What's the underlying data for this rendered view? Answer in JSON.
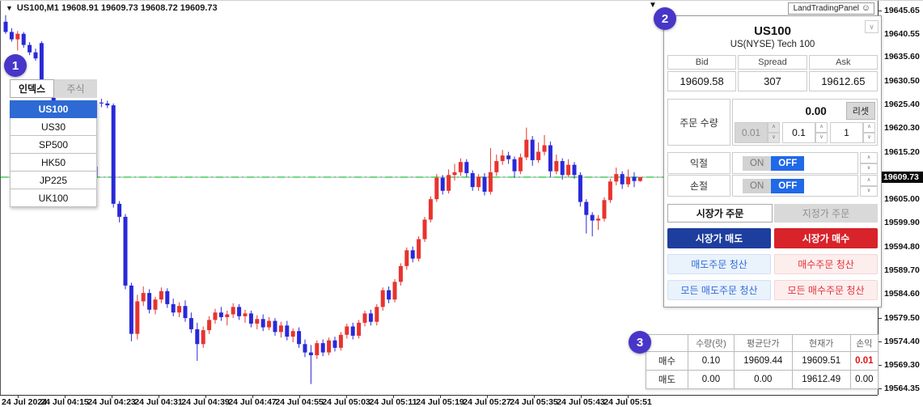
{
  "chart": {
    "title_marker": "▼",
    "ohlc_line": "US100,M1  19608.91 19609.73 19608.72 19609.73",
    "watermark": "LandTradingPanel",
    "current_price": "19609.73",
    "price_axis_labels": [
      "19645.65",
      "19640.55",
      "19635.60",
      "19630.50",
      "19625.40",
      "19620.30",
      "19615.20",
      "19610.10",
      "19605.00",
      "19599.90",
      "19594.80",
      "19589.70",
      "19584.60",
      "19579.50",
      "19574.40",
      "19569.30",
      "19564.35"
    ],
    "time_axis_labels": [
      "24 Jul 2024",
      "24 Jul 04:15",
      "24 Jul 04:23",
      "24 Jul 04:31",
      "24 Jul 04:39",
      "24 Jul 04:47",
      "24 Jul 04:55",
      "24 Jul 05:03",
      "24 Jul 05:11",
      "24 Jul 05:19",
      "24 Jul 05:27",
      "24 Jul 05:35",
      "24 Jul 05:43",
      "24 Jul 05:51"
    ]
  },
  "chart_data": {
    "type": "candlestick",
    "symbol": "US100",
    "timeframe": "M1",
    "title": "US100,M1",
    "last_bar_ohlc": [
      19608.91,
      19609.73,
      19608.72,
      19609.73
    ],
    "current_price": 19609.73,
    "ylim": [
      19562.87,
      19647.7
    ],
    "x_labels": [
      "24 Jul 2024",
      "24 Jul 04:15",
      "24 Jul 04:23",
      "24 Jul 04:31",
      "24 Jul 04:39",
      "24 Jul 04:47",
      "24 Jul 04:55",
      "24 Jul 05:03",
      "24 Jul 05:11",
      "24 Jul 05:19",
      "24 Jul 05:27",
      "24 Jul 05:35",
      "24 Jul 05:43",
      "24 Jul 05:51"
    ],
    "grid": false,
    "up_color": "#e8332e",
    "down_color": "#2929d8",
    "price_line_color": "#33cc44",
    "candles": [
      [
        19643.2,
        19644.6,
        19640.6,
        19641.0
      ],
      [
        19641.0,
        19641.8,
        19638.9,
        19639.4
      ],
      [
        19639.4,
        19641.2,
        19637.0,
        19640.6
      ],
      [
        19640.6,
        19641.0,
        19637.6,
        19638.2
      ],
      [
        19638.2,
        19638.8,
        19636.0,
        19636.6
      ],
      [
        19636.6,
        19637.4,
        19634.8,
        19635.3
      ],
      [
        19638.6,
        19639.0,
        19629.4,
        19629.8
      ],
      [
        19629.8,
        19630.4,
        19626.8,
        19627.4
      ],
      [
        19627.4,
        19628.0,
        19624.6,
        19625.2
      ],
      [
        19625.2,
        19626.0,
        19622.4,
        19623.0
      ],
      [
        19623.0,
        19623.8,
        19620.2,
        19620.8
      ],
      [
        19620.8,
        19621.4,
        19618.0,
        19618.6
      ],
      [
        19618.6,
        19619.4,
        19615.8,
        19616.4
      ],
      [
        19616.4,
        19617.0,
        19613.6,
        19614.2
      ],
      [
        19614.2,
        19615.0,
        19611.4,
        19612.0
      ],
      [
        19612.0,
        19612.8,
        19609.2,
        19609.8
      ],
      [
        19625.8,
        19626.6,
        19624.8,
        19625.6
      ],
      [
        19625.6,
        19626.2,
        19624.6,
        19625.2
      ],
      [
        19625.2,
        19625.6,
        19603.2,
        19604.0
      ],
      [
        19604.0,
        19604.6,
        19600.0,
        19601.2
      ],
      [
        19601.2,
        19601.8,
        19585.6,
        19586.4
      ],
      [
        19586.4,
        19587.0,
        19574.4,
        19576.0
      ],
      [
        19576.0,
        19584.4,
        19574.8,
        19583.0
      ],
      [
        19583.0,
        19586.2,
        19582.0,
        19584.8
      ],
      [
        19584.8,
        19585.6,
        19580.4,
        19581.2
      ],
      [
        19581.2,
        19584.0,
        19580.2,
        19583.4
      ],
      [
        19583.4,
        19586.0,
        19582.6,
        19585.2
      ],
      [
        19585.2,
        19585.8,
        19581.6,
        19582.4
      ],
      [
        19582.4,
        19583.6,
        19579.8,
        19580.6
      ],
      [
        19580.6,
        19582.8,
        19579.6,
        19582.0
      ],
      [
        19582.0,
        19583.2,
        19578.6,
        19579.4
      ],
      [
        19579.4,
        19580.6,
        19576.2,
        19577.0
      ],
      [
        19577.0,
        19578.4,
        19570.2,
        19573.8
      ],
      [
        19573.8,
        19577.6,
        19573.0,
        19576.8
      ],
      [
        19576.8,
        19579.8,
        19576.0,
        19579.0
      ],
      [
        19579.0,
        19581.4,
        19578.2,
        19580.6
      ],
      [
        19580.6,
        19581.8,
        19578.8,
        19579.6
      ],
      [
        19579.6,
        19581.0,
        19577.8,
        19580.2
      ],
      [
        19580.2,
        19582.6,
        19579.4,
        19581.8
      ],
      [
        19581.8,
        19582.4,
        19579.0,
        19579.8
      ],
      [
        19579.8,
        19581.2,
        19578.4,
        19580.4
      ],
      [
        19580.4,
        19581.0,
        19577.4,
        19578.2
      ],
      [
        19578.2,
        19580.0,
        19577.0,
        19579.2
      ],
      [
        19579.2,
        19580.2,
        19576.6,
        19577.4
      ],
      [
        19577.4,
        19579.6,
        19576.8,
        19578.8
      ],
      [
        19578.8,
        19579.4,
        19575.6,
        19576.4
      ],
      [
        19576.4,
        19578.6,
        19575.2,
        19577.8
      ],
      [
        19577.8,
        19578.8,
        19574.6,
        19575.4
      ],
      [
        19575.4,
        19577.2,
        19574.2,
        19576.6
      ],
      [
        19576.6,
        19577.4,
        19573.0,
        19573.8
      ],
      [
        19573.8,
        19574.8,
        19571.0,
        19572.0
      ],
      [
        19572.0,
        19573.6,
        19565.2,
        19571.4
      ],
      [
        19571.4,
        19574.6,
        19570.6,
        19574.0
      ],
      [
        19574.0,
        19574.8,
        19571.2,
        19572.0
      ],
      [
        19572.0,
        19575.2,
        19571.4,
        19574.6
      ],
      [
        19574.6,
        19575.4,
        19572.2,
        19573.0
      ],
      [
        19573.0,
        19576.4,
        19572.4,
        19575.8
      ],
      [
        19575.8,
        19578.2,
        19575.0,
        19577.6
      ],
      [
        19577.6,
        19578.4,
        19574.8,
        19575.6
      ],
      [
        19575.6,
        19579.0,
        19575.0,
        19578.4
      ],
      [
        19578.4,
        19581.0,
        19577.6,
        19580.4
      ],
      [
        19580.4,
        19581.2,
        19577.8,
        19578.6
      ],
      [
        19578.6,
        19582.4,
        19577.8,
        19581.8
      ],
      [
        19581.8,
        19586.0,
        19581.0,
        19585.4
      ],
      [
        19585.4,
        19586.2,
        19582.6,
        19583.4
      ],
      [
        19583.4,
        19587.8,
        19582.8,
        19587.2
      ],
      [
        19587.2,
        19591.2,
        19586.4,
        19590.6
      ],
      [
        19590.6,
        19594.6,
        19589.8,
        19594.0
      ],
      [
        19594.0,
        19594.8,
        19591.4,
        19592.2
      ],
      [
        19592.2,
        19597.0,
        19591.6,
        19596.4
      ],
      [
        19596.4,
        19601.2,
        19595.8,
        19600.6
      ],
      [
        19600.6,
        19605.6,
        19600.0,
        19605.0
      ],
      [
        19605.0,
        19610.4,
        19604.4,
        19609.6
      ],
      [
        19609.6,
        19610.2,
        19606.0,
        19606.8
      ],
      [
        19606.8,
        19611.4,
        19606.2,
        19610.2
      ],
      [
        19610.2,
        19612.6,
        19609.0,
        19610.8
      ],
      [
        19610.8,
        19613.8,
        19610.0,
        19613.0
      ],
      [
        19613.0,
        19613.6,
        19609.8,
        19610.6
      ],
      [
        19610.6,
        19611.2,
        19606.8,
        19607.6
      ],
      [
        19607.6,
        19610.4,
        19606.8,
        19609.8
      ],
      [
        19609.8,
        19610.6,
        19605.8,
        19606.6
      ],
      [
        19606.6,
        19616.0,
        19606.0,
        19610.8
      ],
      [
        19610.8,
        19614.6,
        19610.0,
        19613.2
      ],
      [
        19613.2,
        19615.6,
        19612.4,
        19614.4
      ],
      [
        19614.4,
        19615.2,
        19612.6,
        19613.6
      ],
      [
        19613.6,
        19614.2,
        19609.6,
        19611.0
      ],
      [
        19611.0,
        19614.8,
        19610.4,
        19614.0
      ],
      [
        19614.0,
        19620.4,
        19613.4,
        19617.8
      ],
      [
        19617.8,
        19618.6,
        19612.2,
        19613.4
      ],
      [
        19613.4,
        19617.2,
        19612.8,
        19615.2
      ],
      [
        19615.2,
        19618.8,
        19614.4,
        19616.6
      ],
      [
        19616.6,
        19617.4,
        19609.8,
        19611.0
      ],
      [
        19611.0,
        19614.6,
        19610.4,
        19613.2
      ],
      [
        19613.2,
        19613.8,
        19609.2,
        19610.2
      ],
      [
        19610.2,
        19613.6,
        19609.8,
        19612.4
      ],
      [
        19612.4,
        19613.0,
        19609.4,
        19610.2
      ],
      [
        19610.2,
        19610.8,
        19603.4,
        19604.4
      ],
      [
        19604.4,
        19605.0,
        19597.6,
        19601.6
      ],
      [
        19601.6,
        19602.2,
        19597.0,
        19600.4
      ],
      [
        19600.4,
        19601.6,
        19598.4,
        19600.8
      ],
      [
        19600.8,
        19605.4,
        19600.2,
        19604.8
      ],
      [
        19604.8,
        19609.4,
        19604.2,
        19608.8
      ],
      [
        19608.8,
        19611.8,
        19608.0,
        19610.4
      ],
      [
        19610.4,
        19611.0,
        19607.2,
        19608.2
      ],
      [
        19608.2,
        19611.4,
        19607.6,
        19609.8
      ],
      [
        19609.8,
        19610.8,
        19607.6,
        19608.9
      ],
      [
        19608.91,
        19609.73,
        19608.72,
        19609.73
      ]
    ]
  },
  "icons": {
    "up_arrow": "∧",
    "down_arrow": "∨",
    "collapse": "∨",
    "smiley": "☺",
    "triangle_down": "▼"
  },
  "badges": {
    "one": "1",
    "two": "2",
    "three": "3"
  },
  "symbol_dropdown": {
    "tabs": [
      {
        "label": "인덱스",
        "active": true
      },
      {
        "label": "주식",
        "active": false
      }
    ],
    "items": [
      "US100",
      "US30",
      "SP500",
      "HK50",
      "JP225",
      "UK100"
    ],
    "selected": "US100"
  },
  "trade_panel": {
    "symbol": "US100",
    "description": "US(NYSE) Tech 100",
    "quote": {
      "bid_label": "Bid",
      "spread_label": "Spread",
      "ask_label": "Ask",
      "bid": "19609.58",
      "spread": "307",
      "ask": "19612.65"
    },
    "order_qty": {
      "label": "주문 수량",
      "value": "0.00",
      "reset_label": "리셋",
      "steps": [
        "0.01",
        "0.1",
        "1"
      ]
    },
    "take_profit": {
      "label": "익절",
      "on_label": "ON",
      "off_label": "OFF",
      "state": "OFF"
    },
    "stop_loss": {
      "label": "손절",
      "on_label": "ON",
      "off_label": "OFF",
      "state": "OFF"
    },
    "order_type_tabs": {
      "market": "시장가 주문",
      "limit": "지정가 주문",
      "active": "market"
    },
    "buttons": {
      "market_sell": "시장가 매도",
      "market_buy": "시장가 매수",
      "close_sell": "매도주문 청산",
      "close_buy": "매수주문 청산",
      "close_all_sell": "모든 매도주문 청산",
      "close_all_buy": "모든 매수주문 청산"
    }
  },
  "positions": {
    "headers": {
      "blank": "",
      "qty": "수량(랏)",
      "avg_price": "평균단가",
      "cur_price": "현재가",
      "pl": "손익"
    },
    "rows": [
      {
        "label": "매수",
        "qty": "0.10",
        "avg": "19609.44",
        "cur": "19609.51",
        "pl": "0.01",
        "pl_positive": true
      },
      {
        "label": "매도",
        "qty": "0.00",
        "avg": "0.00",
        "cur": "19612.49",
        "pl": "0.00",
        "pl_positive": false
      }
    ]
  }
}
